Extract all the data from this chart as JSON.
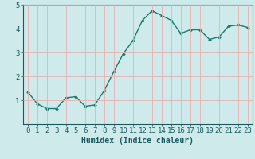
{
  "x": [
    0,
    1,
    2,
    3,
    4,
    5,
    6,
    7,
    8,
    9,
    10,
    11,
    12,
    13,
    14,
    15,
    16,
    17,
    18,
    19,
    20,
    21,
    22,
    23
  ],
  "y": [
    1.35,
    0.85,
    0.65,
    0.65,
    1.1,
    1.15,
    0.75,
    0.8,
    1.4,
    2.2,
    2.95,
    3.5,
    4.35,
    4.75,
    4.55,
    4.35,
    3.8,
    3.95,
    3.95,
    3.55,
    3.65,
    4.1,
    4.15,
    4.05
  ],
  "line_color": "#1a7a6e",
  "marker": "D",
  "marker_size": 2.0,
  "line_width": 1.0,
  "xlabel": "Humidex (Indice chaleur)",
  "xlim": [
    -0.5,
    23.5
  ],
  "ylim": [
    0,
    5
  ],
  "yticks": [
    1,
    2,
    3,
    4,
    5
  ],
  "xticks": [
    0,
    1,
    2,
    3,
    4,
    5,
    6,
    7,
    8,
    9,
    10,
    11,
    12,
    13,
    14,
    15,
    16,
    17,
    18,
    19,
    20,
    21,
    22,
    23
  ],
  "grid_color": "#e8b0b0",
  "bg_color": "#ceeaea",
  "xlabel_fontsize": 7,
  "tick_fontsize": 6.5,
  "text_color": "#1a5a5e"
}
